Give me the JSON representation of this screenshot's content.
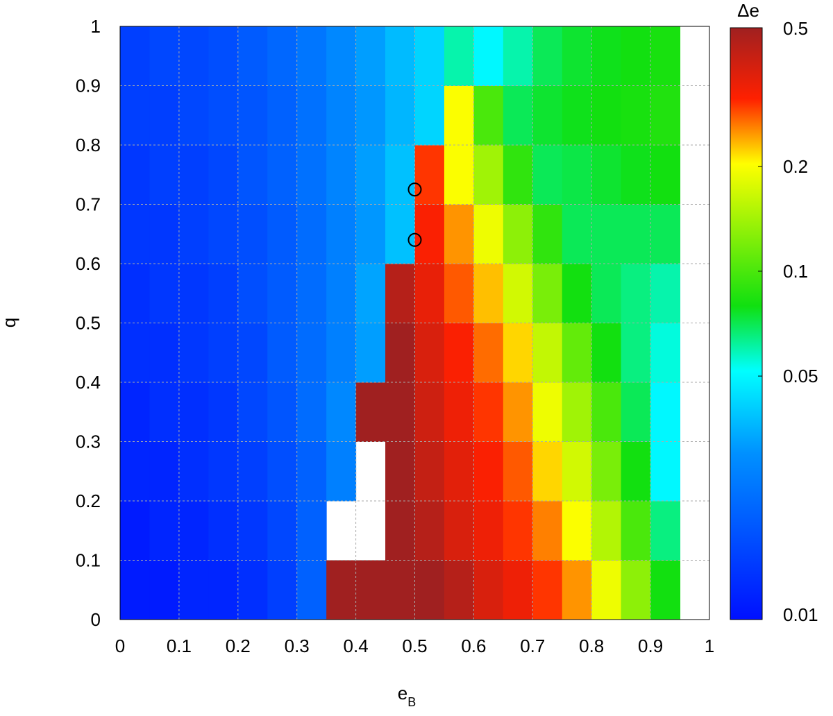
{
  "chart_data": {
    "type": "heatmap",
    "xlabel": "e",
    "xlabel_subscript": "B",
    "ylabel": "q",
    "colorbar_label": "Δe",
    "x": [
      0.025,
      0.075,
      0.125,
      0.175,
      0.225,
      0.275,
      0.325,
      0.375,
      0.425,
      0.475,
      0.525,
      0.575,
      0.625,
      0.675,
      0.725,
      0.775,
      0.825,
      0.875,
      0.925
    ],
    "y": [
      0.05,
      0.15,
      0.25,
      0.35,
      0.45,
      0.55,
      0.65,
      0.75,
      0.85,
      0.95
    ],
    "z": [
      [
        0.011,
        0.011,
        0.012,
        0.012,
        0.013,
        0.015,
        0.02,
        0.5,
        0.5,
        0.5,
        0.5,
        0.45,
        0.38,
        0.34,
        0.3,
        0.25,
        0.19,
        0.13,
        0.08
      ],
      [
        0.011,
        0.012,
        0.012,
        0.013,
        0.014,
        0.016,
        0.02,
        null,
        null,
        0.5,
        0.45,
        0.38,
        0.34,
        0.3,
        0.26,
        0.2,
        0.15,
        0.1,
        0.065
      ],
      [
        0.012,
        0.012,
        0.013,
        0.014,
        0.015,
        0.017,
        0.02,
        0.026,
        null,
        0.5,
        0.42,
        0.36,
        0.32,
        0.28,
        0.22,
        0.17,
        0.12,
        0.08,
        0.05
      ],
      [
        0.012,
        0.013,
        0.013,
        0.014,
        0.016,
        0.018,
        0.022,
        0.028,
        0.5,
        0.5,
        0.4,
        0.34,
        0.3,
        0.25,
        0.19,
        0.14,
        0.1,
        0.07,
        0.05
      ],
      [
        0.013,
        0.013,
        0.014,
        0.015,
        0.016,
        0.019,
        0.022,
        0.026,
        0.032,
        0.5,
        0.38,
        0.32,
        0.27,
        0.22,
        0.16,
        0.11,
        0.08,
        0.065,
        0.055
      ],
      [
        0.013,
        0.014,
        0.014,
        0.015,
        0.017,
        0.019,
        0.022,
        0.026,
        0.033,
        0.45,
        0.35,
        0.28,
        0.23,
        0.17,
        0.12,
        0.08,
        0.07,
        0.065,
        0.06
      ],
      [
        0.014,
        0.014,
        0.015,
        0.016,
        0.017,
        0.019,
        0.022,
        0.026,
        0.031,
        0.038,
        0.32,
        0.25,
        0.19,
        0.13,
        0.09,
        0.07,
        0.07,
        0.07,
        0.07
      ],
      [
        0.014,
        0.015,
        0.015,
        0.016,
        0.018,
        0.02,
        0.023,
        0.027,
        0.032,
        0.038,
        0.3,
        0.2,
        0.14,
        0.09,
        0.07,
        0.072,
        0.075,
        0.078,
        0.08
      ],
      [
        0.015,
        0.015,
        0.016,
        0.017,
        0.018,
        0.02,
        0.023,
        0.027,
        0.031,
        0.036,
        0.042,
        0.2,
        0.1,
        0.07,
        0.075,
        0.078,
        0.08,
        0.082,
        0.085
      ],
      [
        0.015,
        0.016,
        0.016,
        0.017,
        0.019,
        0.021,
        0.024,
        0.028,
        0.032,
        0.037,
        0.042,
        0.06,
        0.05,
        0.06,
        0.07,
        0.075,
        0.078,
        0.08,
        0.082
      ]
    ],
    "xlim": [
      0,
      1
    ],
    "ylim": [
      0,
      1
    ],
    "xticks": [
      0,
      0.1,
      0.2,
      0.3,
      0.4,
      0.5,
      0.6,
      0.7,
      0.8,
      0.9,
      1
    ],
    "yticks": [
      0,
      0.1,
      0.2,
      0.3,
      0.4,
      0.5,
      0.6,
      0.7,
      0.8,
      0.9,
      1
    ],
    "zlim": [
      0.01,
      0.5
    ],
    "zticks": [
      0.01,
      0.05,
      0.1,
      0.2,
      0.5
    ],
    "zscale": "log",
    "colorscale": [
      [
        0,
        "#0010ff"
      ],
      [
        0.28,
        "#0090ff"
      ],
      [
        0.42,
        "#00ffff"
      ],
      [
        0.53,
        "#10e010"
      ],
      [
        0.77,
        "#ffff00"
      ],
      [
        0.88,
        "#ff2000"
      ],
      [
        1,
        "#a02020"
      ]
    ],
    "grid": true,
    "markers": {
      "x": [
        0.5,
        0.5
      ],
      "y": [
        0.725,
        0.64
      ],
      "color": "#000000"
    }
  }
}
